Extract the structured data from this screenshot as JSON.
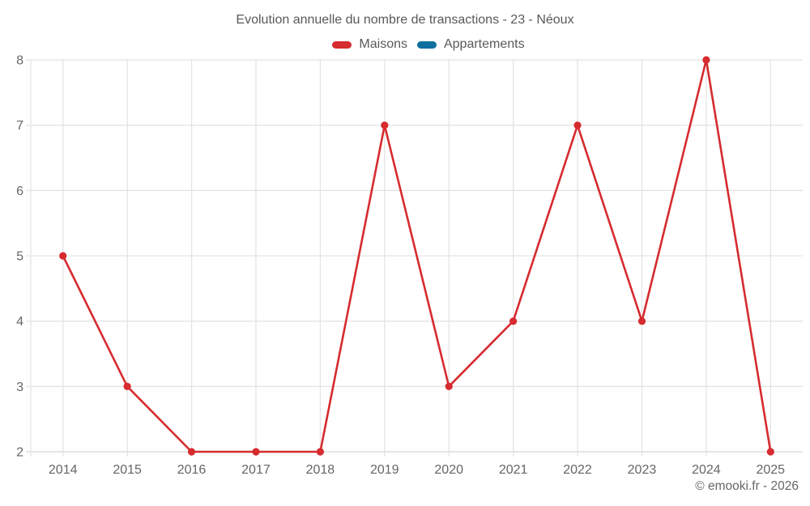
{
  "title": "Evolution annuelle du nombre de transactions - 23 - Néoux",
  "copyright": "© emooki.fr - 2026",
  "colors": {
    "background": "#ffffff",
    "grid": "#e4e4e4",
    "axis": "#d6d6d6",
    "axis_label": "#666666",
    "title_text": "#58595b",
    "maisons_red": "#d62b2f",
    "appartements_blue": "#0f6f9f"
  },
  "chart_data": {
    "type": "line",
    "title": "Evolution annuelle du nombre de transactions - 23 - Néoux",
    "x": [
      "2014",
      "2015",
      "2016",
      "2017",
      "2018",
      "2019",
      "2020",
      "2021",
      "2022",
      "2023",
      "2024",
      "2025"
    ],
    "series": [
      {
        "name": "Maisons",
        "color": "#d62b2f",
        "values": [
          5,
          3,
          2,
          2,
          2,
          7,
          3,
          4,
          7,
          4,
          8,
          2
        ]
      },
      {
        "name": "Appartements",
        "color": "#0f6f9f",
        "values": []
      }
    ],
    "xlabel": "",
    "ylabel": "",
    "ylim": [
      2,
      8
    ],
    "ytick_step": 1,
    "grid": true,
    "legend_position": "top",
    "marker": "circle",
    "annotation": "© emooki.fr - 2026"
  }
}
